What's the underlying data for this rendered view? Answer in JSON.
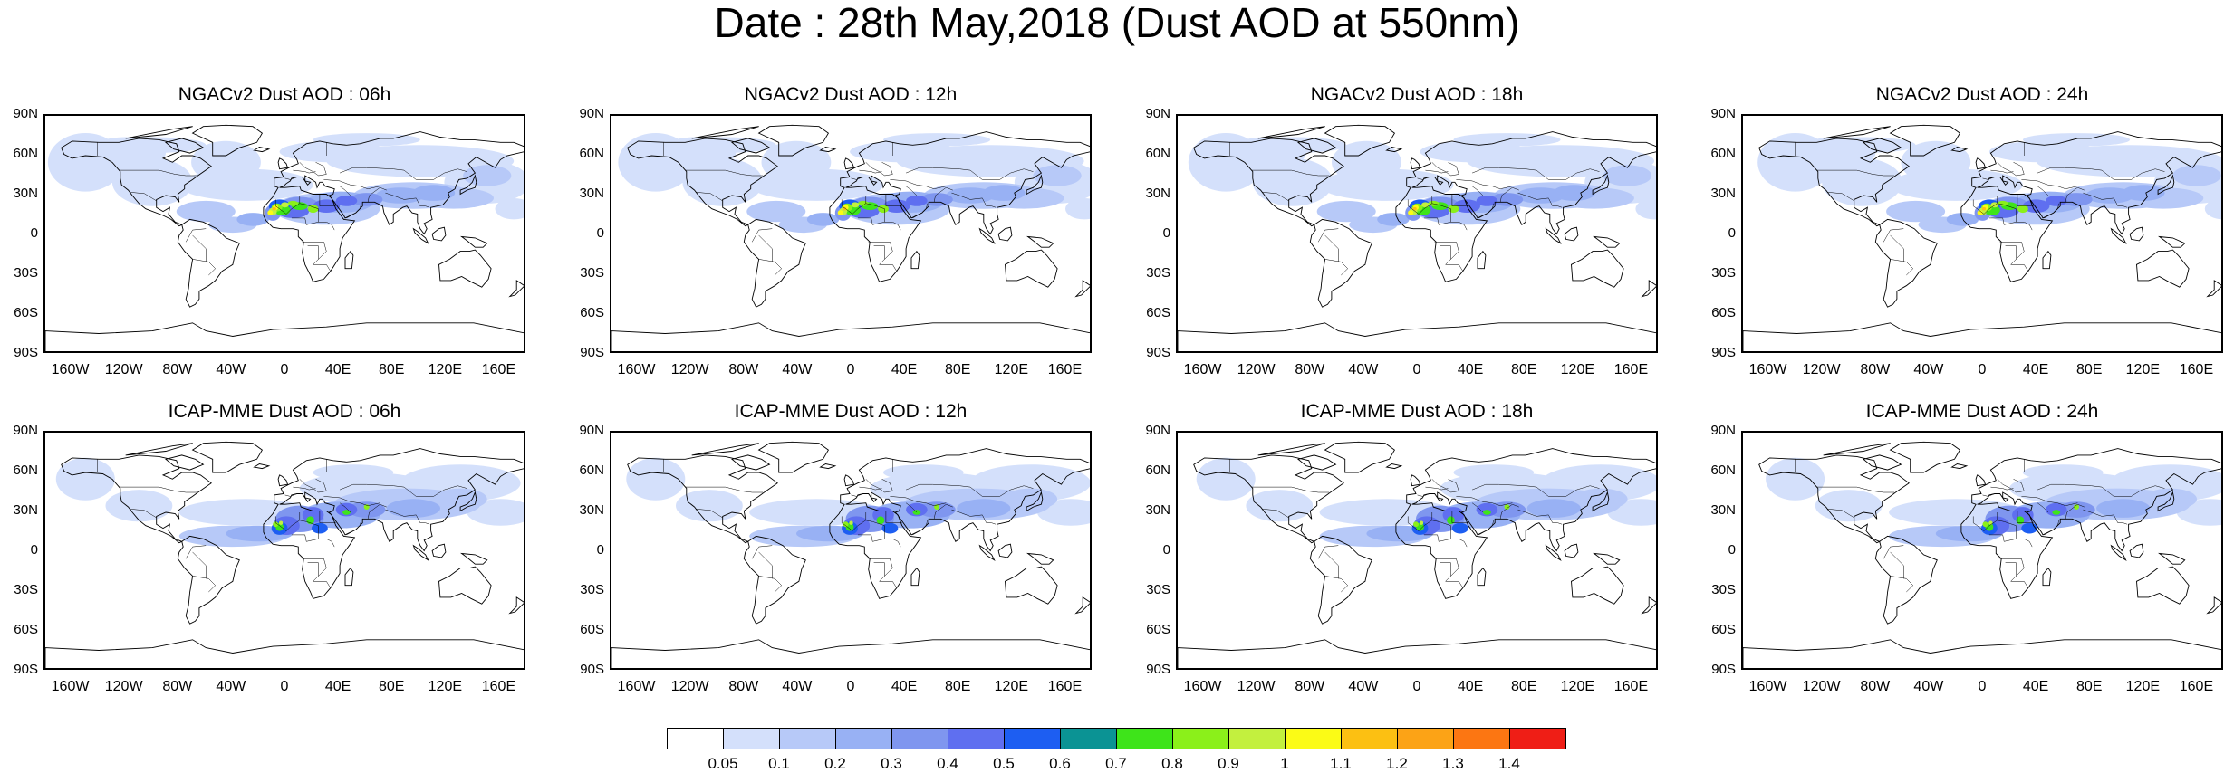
{
  "title": "Date : 28th May,2018 (Dust AOD at 550nm)",
  "lat_ticks": [
    "90N",
    "60N",
    "30N",
    "0",
    "30S",
    "60S",
    "90S"
  ],
  "lon_ticks": [
    "160W",
    "120W",
    "80W",
    "40W",
    "0",
    "40E",
    "80E",
    "120E",
    "160E"
  ],
  "panels": [
    {
      "title": "NGACv2 Dust AOD : 06h",
      "model": "NGACv2",
      "lead": "06h"
    },
    {
      "title": "NGACv2 Dust AOD : 12h",
      "model": "NGACv2",
      "lead": "12h"
    },
    {
      "title": "NGACv2 Dust AOD : 18h",
      "model": "NGACv2",
      "lead": "18h"
    },
    {
      "title": "NGACv2 Dust AOD : 24h",
      "model": "NGACv2",
      "lead": "24h"
    },
    {
      "title": "ICAP-MME Dust AOD : 06h",
      "model": "ICAP-MME",
      "lead": "06h"
    },
    {
      "title": "ICAP-MME Dust AOD : 12h",
      "model": "ICAP-MME",
      "lead": "12h"
    },
    {
      "title": "ICAP-MME Dust AOD : 18h",
      "model": "ICAP-MME",
      "lead": "18h"
    },
    {
      "title": "ICAP-MME Dust AOD : 24h",
      "model": "ICAP-MME",
      "lead": "24h"
    }
  ],
  "colorbar": {
    "labels": [
      "0.05",
      "0.1",
      "0.2",
      "0.3",
      "0.4",
      "0.5",
      "0.6",
      "0.7",
      "0.8",
      "0.9",
      "1",
      "1.1",
      "1.2",
      "1.3",
      "1.4"
    ],
    "colors": [
      "#ffffff",
      "#d4e0fb",
      "#b7c9f8",
      "#98b1f4",
      "#7f96ef",
      "#5f6ff0",
      "#1d5ef2",
      "#0b9394",
      "#3ee41a",
      "#8bf01a",
      "#c3f03e",
      "#fbfb16",
      "#fcc012",
      "#fca316",
      "#fc7612",
      "#ef1e16"
    ]
  },
  "map_colors": {
    "land_outline": "#000000",
    "ocean": "#ffffff"
  }
}
